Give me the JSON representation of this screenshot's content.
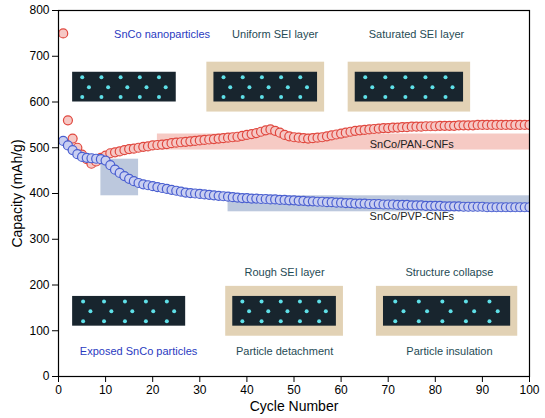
{
  "chart_data": {
    "type": "scatter",
    "x_label": "Cycle Number",
    "y_label": "Capacity (mAh/g)",
    "x": [
      1,
      2,
      3,
      4,
      5,
      6,
      7,
      8,
      9,
      10,
      11,
      12,
      13,
      14,
      15,
      16,
      17,
      18,
      19,
      20,
      21,
      22,
      23,
      24,
      25,
      26,
      27,
      28,
      29,
      30,
      31,
      32,
      33,
      34,
      35,
      36,
      37,
      38,
      39,
      40,
      41,
      42,
      43,
      44,
      45,
      46,
      47,
      48,
      49,
      50,
      51,
      52,
      53,
      54,
      55,
      56,
      57,
      58,
      59,
      60,
      61,
      62,
      63,
      64,
      65,
      66,
      67,
      68,
      69,
      70,
      71,
      72,
      73,
      74,
      75,
      76,
      77,
      78,
      79,
      80,
      81,
      82,
      83,
      84,
      85,
      86,
      87,
      88,
      89,
      90,
      91,
      92,
      93,
      94,
      95,
      96,
      97,
      98,
      99,
      100
    ],
    "series": [
      {
        "name": "SnCo/PAN-CNFs",
        "color": "#e0483f",
        "marker": "circle",
        "values": [
          750,
          560,
          520,
          500,
          485,
          475,
          465,
          470,
          478,
          483,
          488,
          490,
          492,
          495,
          497,
          498,
          500,
          502,
          503,
          505,
          506,
          507,
          508,
          510,
          511,
          512,
          513,
          514,
          515,
          516,
          517,
          518,
          519,
          520,
          521,
          522,
          523,
          524,
          526,
          528,
          530,
          532,
          535,
          538,
          540,
          537,
          533,
          528,
          525,
          523,
          522,
          521,
          520,
          521,
          522,
          523,
          525,
          527,
          529,
          531,
          533,
          535,
          537,
          538,
          539,
          540,
          541,
          542,
          543,
          543,
          544,
          544,
          545,
          545,
          546,
          546,
          546,
          547,
          547,
          547,
          548,
          548,
          548,
          548,
          549,
          549,
          549,
          549,
          550,
          550,
          550,
          550,
          550,
          550,
          550,
          550,
          550,
          550,
          550,
          550
        ]
      },
      {
        "name": "SnCo/PVP-CNFs",
        "color": "#4a5fd0",
        "marker": "circle",
        "values": [
          515,
          505,
          495,
          486,
          480,
          478,
          477,
          476,
          475,
          472,
          462,
          452,
          445,
          438,
          432,
          427,
          423,
          420,
          418,
          416,
          414,
          412,
          410,
          408,
          406,
          404,
          402,
          401,
          400,
          399,
          398,
          397,
          396,
          395,
          394,
          393,
          392,
          391,
          390,
          390,
          389,
          389,
          388,
          388,
          387,
          387,
          386,
          386,
          385,
          385,
          384,
          384,
          383,
          383,
          382,
          382,
          381,
          381,
          380,
          380,
          379,
          379,
          378,
          378,
          378,
          377,
          377,
          377,
          376,
          376,
          376,
          375,
          375,
          375,
          374,
          374,
          374,
          373,
          373,
          373,
          373,
          372,
          372,
          372,
          372,
          371,
          371,
          371,
          371,
          371,
          370,
          370,
          370,
          370,
          370,
          370,
          370,
          370,
          370,
          370
        ]
      }
    ],
    "bands": [
      {
        "x": [
          21,
          100
        ],
        "y": [
          495,
          530
        ],
        "color": "#f2b3ab"
      },
      {
        "x": [
          9,
          17
        ],
        "y": [
          395,
          475
        ],
        "color": "#9fb0cf"
      },
      {
        "x": [
          36,
          100
        ],
        "y": [
          360,
          395
        ],
        "color": "#9fb0cf"
      }
    ],
    "annotations": [
      {
        "text": "SnCo nanoparticles",
        "color": "#2a3bbf"
      },
      {
        "text": "Uniform SEI layer",
        "color": "#1f4b55"
      },
      {
        "text": "Saturated SEI layer",
        "color": "#1f4b55"
      },
      {
        "text": "Exposed SnCo particles",
        "color": "#2a3bbf"
      },
      {
        "text": "Rough SEI layer",
        "color": "#1f4b55"
      },
      {
        "text": "Particle detachment",
        "color": "#1f4b55"
      },
      {
        "text": "Structure collapse",
        "color": "#1f4b55"
      },
      {
        "text": "Particle insulation",
        "color": "#1f4b55"
      }
    ],
    "xlim": [
      0,
      100
    ],
    "xticks": [
      0,
      10,
      20,
      30,
      40,
      50,
      60,
      70,
      80,
      90,
      100
    ],
    "ylim": [
      0,
      800
    ],
    "yticks": [
      0,
      100,
      200,
      300,
      400,
      500,
      600,
      700,
      800
    ],
    "grid": false
  }
}
